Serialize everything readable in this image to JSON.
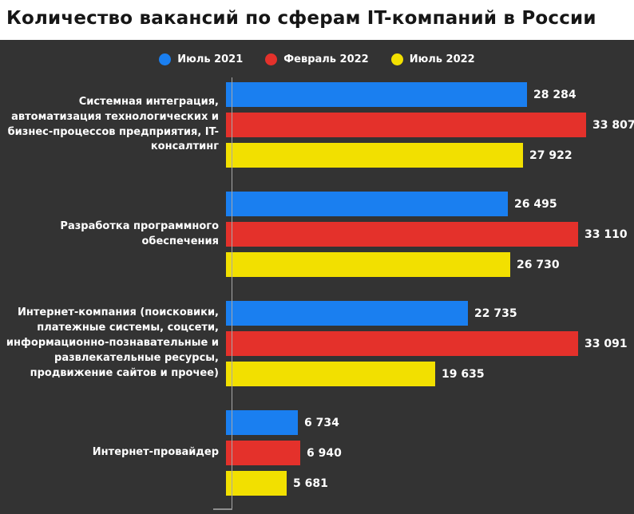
{
  "title": "Количество вакансий по сферам IT-компаний в России",
  "colors": {
    "background": "#333333",
    "title_bg": "#ffffff",
    "title_text": "#161616",
    "label_text": "#ffffff",
    "axis": "#a8a8a8"
  },
  "chart_data": {
    "type": "bar",
    "orientation": "horizontal",
    "title": "Количество вакансий по сферам IT-компаний в России",
    "legend_position": "top",
    "grid": false,
    "xlim": [
      0,
      36000
    ],
    "categories": [
      "Системная интеграция, автоматизация технологических и бизнес-процессов предприятия, IT-консалтинг",
      "Разработка программного обеспечения",
      "Интернет-компания (поисковики, платежные системы, соцсети, информационно-познавательные и развлекательные ресурсы, продвижение сайтов и прочее)",
      "Интернет-провайдер"
    ],
    "series": [
      {
        "name": "Июль 2021",
        "color": "#1a7ff0",
        "values": [
          28284,
          26495,
          22735,
          6734
        ],
        "labels": [
          "28 284",
          "26 495",
          "22 735",
          "6 734"
        ]
      },
      {
        "name": "Февраль 2022",
        "color": "#e4312b",
        "values": [
          33807,
          33110,
          33091,
          6940
        ],
        "labels": [
          "33 807",
          "33 110",
          "33 091",
          "6 940"
        ]
      },
      {
        "name": "Июль 2022",
        "color": "#f2e000",
        "values": [
          27922,
          26730,
          19635,
          5681
        ],
        "labels": [
          "27 922",
          "26 730",
          "19 635",
          "5 681"
        ]
      }
    ]
  }
}
